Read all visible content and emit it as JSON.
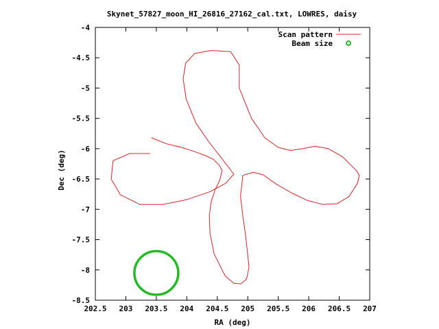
{
  "chart_data": {
    "type": "scatter",
    "title": "Skynet_57827_moon_HI_26816_27162_cal.txt, LOWRES, daisy",
    "xlabel": "RA (deg)",
    "ylabel": "Dec (deg)",
    "xlim": [
      202.5,
      207
    ],
    "ylim": [
      -8.5,
      -4
    ],
    "x_ticks": [
      "202.5",
      "203",
      "203.5",
      "204",
      "204.5",
      "205",
      "205.5",
      "206",
      "206.5",
      "207"
    ],
    "y_ticks": [
      "-4",
      "-4.5",
      "-5",
      "-5.5",
      "-6",
      "-6.5",
      "-7",
      "-7.5",
      "-8",
      "-8.5"
    ],
    "grid": false,
    "legend_position": "top-right",
    "series": [
      {
        "name": "Scan pattern",
        "style": "line",
        "color": "#e02020",
        "x": [
          203.4,
          203.06,
          202.79,
          202.76,
          202.91,
          203.23,
          203.61,
          204.0,
          204.38,
          204.64,
          204.77,
          204.58,
          204.37,
          204.15,
          203.99,
          203.94,
          203.98,
          204.13,
          204.4,
          204.72,
          204.86,
          204.86,
          205.06,
          205.28,
          205.5,
          205.7,
          205.9,
          206.1,
          206.32,
          206.55,
          206.78,
          206.83,
          206.8,
          206.66,
          206.46,
          206.23,
          205.97,
          205.72,
          205.46,
          205.25,
          205.09,
          204.92,
          204.88,
          204.92,
          204.96,
          205.0,
          205.02,
          204.98,
          204.89,
          204.77,
          204.63,
          204.45,
          204.38,
          204.37,
          204.4,
          204.46,
          204.54,
          204.58,
          204.53,
          204.44,
          204.32,
          204.13,
          203.92,
          203.67,
          203.42
        ],
        "y": [
          -6.08,
          -6.08,
          -6.2,
          -6.5,
          -6.76,
          -6.92,
          -6.92,
          -6.84,
          -6.71,
          -6.57,
          -6.42,
          -6.17,
          -5.9,
          -5.58,
          -5.18,
          -4.85,
          -4.59,
          -4.43,
          -4.38,
          -4.4,
          -4.62,
          -5.0,
          -5.5,
          -5.82,
          -5.98,
          -6.03,
          -6.0,
          -5.96,
          -6.0,
          -6.13,
          -6.36,
          -6.44,
          -6.57,
          -6.79,
          -6.91,
          -6.92,
          -6.85,
          -6.73,
          -6.58,
          -6.43,
          -6.39,
          -6.44,
          -6.78,
          -7.12,
          -7.4,
          -7.75,
          -7.96,
          -8.15,
          -8.23,
          -8.22,
          -8.1,
          -7.74,
          -7.39,
          -7.1,
          -6.88,
          -6.69,
          -6.52,
          -6.36,
          -6.27,
          -6.18,
          -6.12,
          -6.05,
          -5.98,
          -5.92,
          -5.82
        ]
      },
      {
        "name": "Beam size",
        "style": "points",
        "color": "#22bb22",
        "center": [
          203.5,
          -8.05
        ],
        "radius_deg": 0.36
      }
    ]
  }
}
